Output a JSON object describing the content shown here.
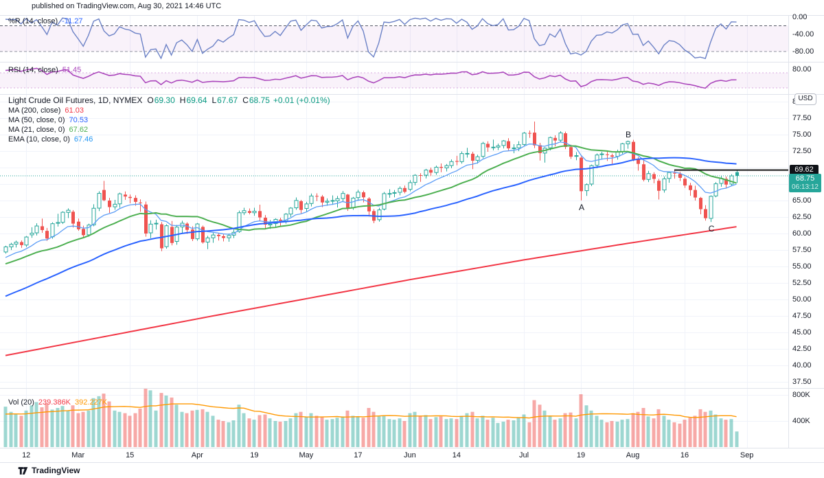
{
  "header": {
    "published_text": "published on TradingView.com, Aug 30, 2021 14:46 UTC"
  },
  "watermark": {
    "brand": "TradingView"
  },
  "colors": {
    "up_candle": "#26a69a",
    "down_candle": "#ef5350",
    "vol_up": "rgba(38,166,154,0.45)",
    "vol_down": "rgba(239,83,80,0.5)",
    "ma200": "#f23645",
    "ma50": "#2962ff",
    "ma21": "#4caf50",
    "ema10": "#5b9cf6",
    "vol_ma": "#ff9800",
    "wpr_line": "#6b81c6",
    "rsi_line": "#ab47bc",
    "band_fill": "rgba(171,71,188,0.07)",
    "band_dash_dark": "#565b66",
    "band_dash_light": "#9094a0",
    "rsi_dash": "rgba(171,71,188,0.45)",
    "grid": "#f0f3fa",
    "pane_border": "#e0e3eb",
    "axis_text": "#131722",
    "last_price": "#26a69a",
    "trendline": "#111111"
  },
  "panes": {
    "wpr": {
      "label": "%R (14, close)",
      "value": "-11.27",
      "ticks": [
        {
          "t": "0.00",
          "v": 0
        },
        {
          "t": "-40.00",
          "v": -40
        },
        {
          "t": "-80.00",
          "v": -80
        }
      ],
      "levels": [
        -20,
        -80
      ]
    },
    "rsi": {
      "label": "RSI (14, close)",
      "value": "51.45",
      "ticks": [
        {
          "t": "80.00",
          "v": 80
        }
      ],
      "levels": [
        70,
        30
      ]
    },
    "main": {
      "title": "Light Crude Oil Futures, 1D, NYMEX",
      "ohlc": {
        "o_label": "O",
        "o": "69.30",
        "h_label": "H",
        "h": "69.64",
        "l_label": "L",
        "l": "67.67",
        "c_label": "C",
        "c": "68.75",
        "change": "+0.01 (+0.01%)"
      },
      "indicators": [
        {
          "label": "MA (200, close)",
          "value": "61.03"
        },
        {
          "label": "MA (50, close, 0)",
          "value": "70.53"
        },
        {
          "label": "MA (21, close, 0)",
          "value": "67.62"
        },
        {
          "label": "EMA (10, close, 0)",
          "value": "67.46"
        }
      ],
      "currency_badge": "USD",
      "ticks": [
        {
          "t": "80.00",
          "v": 80
        },
        {
          "t": "77.50",
          "v": 77.5
        },
        {
          "t": "75.00",
          "v": 75
        },
        {
          "t": "72.50",
          "v": 72.5
        },
        {
          "t": "65.00",
          "v": 65
        },
        {
          "t": "62.50",
          "v": 62.5
        },
        {
          "t": "60.00",
          "v": 60
        },
        {
          "t": "57.50",
          "v": 57.5
        },
        {
          "t": "55.00",
          "v": 55
        },
        {
          "t": "52.50",
          "v": 52.5
        },
        {
          "t": "50.00",
          "v": 50
        },
        {
          "t": "47.50",
          "v": 47.5
        },
        {
          "t": "45.00",
          "v": 45
        },
        {
          "t": "42.50",
          "v": 42.5
        },
        {
          "t": "40.00",
          "v": 40
        },
        {
          "t": "37.50",
          "v": 37.5
        }
      ],
      "price_labels": {
        "trendline": "69.62",
        "last": "68.75",
        "countdown": "06:13:12"
      }
    },
    "volume": {
      "label": "Vol (20)",
      "value_current": "239.386K",
      "value_ma": "392.227K",
      "ticks": [
        {
          "t": "800K",
          "v": 800
        },
        {
          "t": "400K",
          "v": 400
        }
      ]
    }
  },
  "x_axis": {
    "labels": [
      {
        "text": "12",
        "i": 4
      },
      {
        "text": "Mar",
        "i": 14
      },
      {
        "text": "15",
        "i": 24
      },
      {
        "text": "Apr",
        "i": 37
      },
      {
        "text": "19",
        "i": 48
      },
      {
        "text": "May",
        "i": 58
      },
      {
        "text": "17",
        "i": 68
      },
      {
        "text": "Jun",
        "i": 78
      },
      {
        "text": "14",
        "i": 87
      },
      {
        "text": "Jul",
        "i": 100
      },
      {
        "text": "19",
        "i": 111
      },
      {
        "text": "Aug",
        "i": 121
      },
      {
        "text": "16",
        "i": 131
      },
      {
        "text": "Sep",
        "i": 143
      }
    ]
  },
  "chart_data": {
    "type": "candlestick",
    "symbol": "Light Crude Oil Futures",
    "interval": "1D",
    "exchange": "NYMEX",
    "y_axis_range": [
      37.5,
      80
    ],
    "indicator_settings": {
      "wpr_period": 14,
      "rsi_period": 14,
      "sma": [
        200,
        50,
        21
      ],
      "ema": [
        10
      ],
      "vol_ma": 20
    },
    "last_price": 68.75,
    "trendline": {
      "price": 69.62,
      "from_i": 129
    },
    "annotations": [
      {
        "text": "A",
        "i": 111,
        "price": 65.01,
        "pos": "below"
      },
      {
        "text": "B",
        "i": 120,
        "price": 74.1,
        "pos": "above"
      },
      {
        "text": "C",
        "i": 136,
        "price": 61.74,
        "pos": "below"
      }
    ],
    "ma200_points": [
      [
        0,
        41.5
      ],
      [
        20,
        44.5
      ],
      [
        40,
        47.5
      ],
      [
        60,
        50.4
      ],
      [
        78,
        53.0
      ],
      [
        100,
        56.0
      ],
      [
        120,
        58.5
      ],
      [
        141,
        61.03
      ]
    ],
    "pre_close_warmup": [
      41.2,
      41.9,
      42.4,
      42.7,
      43.0,
      42.5,
      43.1,
      43.5,
      43.8,
      44.2,
      44.6,
      45.0,
      45.3,
      45.1,
      45.7,
      46.3,
      47.0,
      46.5,
      45.9,
      46.4,
      47.6,
      49.9,
      50.6,
      50.8,
      52.2,
      52.8,
      52.4,
      53.6,
      53.0,
      53.3,
      52.9,
      53.1,
      52.3,
      52.8,
      53.6,
      54.8,
      55.7,
      56.2,
      56.9,
      57.1,
      56.7,
      56.3,
      55.8,
      55.2,
      54.9,
      55.3,
      55.9,
      56.4,
      56.7,
      56.85
    ],
    "candles": [
      [
        57.2,
        58.15,
        56.95,
        57.97,
        620
      ],
      [
        57.97,
        58.6,
        57.5,
        58.36,
        540
      ],
      [
        58.4,
        58.92,
        57.88,
        58.68,
        505
      ],
      [
        58.7,
        58.95,
        57.82,
        58.24,
        480
      ],
      [
        58.25,
        59.62,
        57.95,
        59.47,
        560
      ],
      [
        59.8,
        60.95,
        59.35,
        60.05,
        640
      ],
      [
        60.1,
        61.55,
        59.7,
        61.14,
        690
      ],
      [
        61.1,
        62.26,
        60.1,
        60.52,
        610
      ],
      [
        60.4,
        60.85,
        58.88,
        59.24,
        670
      ],
      [
        59.5,
        61.7,
        59.2,
        61.49,
        575
      ],
      [
        61.55,
        63.0,
        61.05,
        61.67,
        600
      ],
      [
        61.7,
        63.37,
        61.45,
        63.22,
        630
      ],
      [
        63.2,
        63.81,
        62.35,
        63.53,
        560
      ],
      [
        63.3,
        63.55,
        60.9,
        61.5,
        640
      ],
      [
        61.8,
        62.27,
        60.42,
        60.64,
        520
      ],
      [
        60.7,
        61.18,
        59.4,
        59.75,
        540
      ],
      [
        59.8,
        61.5,
        59.52,
        61.28,
        560
      ],
      [
        61.3,
        64.44,
        61.1,
        63.83,
        750
      ],
      [
        63.85,
        66.4,
        63.4,
        66.09,
        780
      ],
      [
        66.6,
        67.98,
        64.9,
        65.05,
        820
      ],
      [
        65.0,
        65.4,
        63.13,
        64.01,
        700
      ],
      [
        64.05,
        65.1,
        63.6,
        64.44,
        560
      ],
      [
        64.5,
        66.2,
        63.9,
        66.02,
        540
      ],
      [
        65.9,
        66.38,
        65.1,
        65.61,
        520
      ],
      [
        65.55,
        65.91,
        64.6,
        65.39,
        480
      ],
      [
        65.4,
        65.8,
        64.2,
        64.8,
        520
      ],
      [
        64.7,
        65.18,
        63.3,
        64.6,
        590
      ],
      [
        64.4,
        64.85,
        59.52,
        60.0,
        900
      ],
      [
        60.1,
        62.0,
        59.3,
        61.42,
        870
      ],
      [
        61.5,
        62.1,
        60.6,
        61.55,
        560
      ],
      [
        61.4,
        61.75,
        57.32,
        57.76,
        830
      ],
      [
        58.0,
        61.4,
        57.7,
        61.18,
        790
      ],
      [
        61.0,
        61.9,
        58.2,
        58.56,
        760
      ],
      [
        58.8,
        61.3,
        58.3,
        60.97,
        650
      ],
      [
        61.0,
        61.94,
        60.1,
        61.56,
        540
      ],
      [
        61.5,
        61.7,
        59.95,
        60.55,
        520
      ],
      [
        60.6,
        61.1,
        58.85,
        59.16,
        560
      ],
      [
        59.2,
        61.6,
        58.9,
        61.45,
        570
      ],
      [
        61.0,
        61.2,
        58.47,
        58.65,
        580
      ],
      [
        58.7,
        59.65,
        57.63,
        59.33,
        540
      ],
      [
        59.35,
        60.1,
        58.6,
        59.77,
        480
      ],
      [
        59.8,
        60.0,
        58.93,
        59.6,
        420
      ],
      [
        59.6,
        59.9,
        58.8,
        59.32,
        400
      ],
      [
        59.35,
        60.0,
        58.75,
        59.7,
        380
      ],
      [
        59.75,
        60.6,
        59.3,
        60.18,
        410
      ],
      [
        60.3,
        63.48,
        60.1,
        63.15,
        650
      ],
      [
        63.15,
        63.9,
        62.8,
        63.46,
        520
      ],
      [
        63.4,
        63.8,
        62.9,
        63.13,
        440
      ],
      [
        63.15,
        63.9,
        62.7,
        63.38,
        420
      ],
      [
        63.4,
        64.38,
        61.85,
        62.44,
        490
      ],
      [
        62.4,
        62.8,
        60.61,
        61.35,
        500
      ],
      [
        61.3,
        62.06,
        60.7,
        61.43,
        440
      ],
      [
        61.5,
        62.3,
        60.9,
        62.14,
        400
      ],
      [
        62.1,
        62.4,
        61.05,
        61.91,
        390
      ],
      [
        61.9,
        63.1,
        61.5,
        62.94,
        400
      ],
      [
        62.95,
        64.0,
        62.5,
        63.86,
        440
      ],
      [
        63.9,
        65.47,
        63.6,
        65.01,
        520
      ],
      [
        64.9,
        65.1,
        63.07,
        63.58,
        540
      ],
      [
        63.8,
        64.8,
        63.3,
        64.49,
        460
      ],
      [
        64.55,
        66.07,
        64.1,
        65.69,
        520
      ],
      [
        65.7,
        66.1,
        64.92,
        65.63,
        480
      ],
      [
        65.6,
        65.85,
        64.0,
        64.71,
        460
      ],
      [
        64.75,
        65.32,
        64.2,
        64.9,
        420
      ],
      [
        65.0,
        65.78,
        64.35,
        64.92,
        430
      ],
      [
        64.95,
        65.7,
        63.94,
        65.28,
        450
      ],
      [
        65.3,
        66.44,
        64.9,
        66.08,
        470
      ],
      [
        65.9,
        66.0,
        63.42,
        63.82,
        560
      ],
      [
        63.9,
        65.55,
        63.6,
        65.37,
        480
      ],
      [
        65.45,
        66.63,
        64.95,
        66.27,
        470
      ],
      [
        66.25,
        66.5,
        64.73,
        65.49,
        450
      ],
      [
        65.3,
        65.52,
        62.58,
        63.36,
        600
      ],
      [
        63.4,
        63.7,
        61.56,
        61.94,
        540
      ],
      [
        62.1,
        63.9,
        61.8,
        63.58,
        470
      ],
      [
        63.7,
        66.3,
        63.5,
        66.05,
        480
      ],
      [
        66.05,
        66.72,
        65.42,
        66.07,
        430
      ],
      [
        66.1,
        66.6,
        65.5,
        66.21,
        420
      ],
      [
        66.25,
        67.15,
        65.8,
        66.85,
        440
      ],
      [
        66.9,
        67.28,
        66.1,
        66.32,
        400
      ],
      [
        66.7,
        68.1,
        66.4,
        67.72,
        520
      ],
      [
        67.75,
        69.0,
        67.3,
        68.83,
        540
      ],
      [
        68.85,
        69.15,
        67.84,
        68.81,
        480
      ],
      [
        68.85,
        69.8,
        68.35,
        69.62,
        490
      ],
      [
        69.65,
        70.0,
        68.72,
        69.23,
        430
      ],
      [
        69.25,
        70.3,
        68.9,
        70.05,
        460
      ],
      [
        70.1,
        70.62,
        69.3,
        69.96,
        470
      ],
      [
        69.95,
        70.55,
        69.42,
        70.29,
        430
      ],
      [
        70.3,
        71.24,
        69.9,
        70.91,
        440
      ],
      [
        71.0,
        71.78,
        70.35,
        70.88,
        430
      ],
      [
        70.9,
        72.45,
        70.6,
        72.12,
        480
      ],
      [
        72.15,
        72.99,
        71.51,
        72.15,
        520
      ],
      [
        72.1,
        72.4,
        69.77,
        71.04,
        540
      ],
      [
        71.1,
        71.95,
        70.6,
        71.64,
        440
      ],
      [
        71.7,
        73.9,
        71.4,
        73.66,
        480
      ],
      [
        73.6,
        73.98,
        72.4,
        73.06,
        420
      ],
      [
        73.1,
        74.25,
        72.6,
        73.08,
        450
      ],
      [
        73.1,
        73.63,
        72.65,
        73.3,
        370
      ],
      [
        73.35,
        74.18,
        72.9,
        74.05,
        390
      ],
      [
        74.0,
        74.45,
        72.62,
        72.91,
        420
      ],
      [
        72.95,
        73.54,
        72.18,
        72.98,
        410
      ],
      [
        73.0,
        74.0,
        72.5,
        73.47,
        460
      ],
      [
        73.5,
        75.4,
        73.2,
        75.23,
        500
      ],
      [
        75.25,
        75.62,
        74.5,
        75.16,
        380
      ],
      [
        75.3,
        76.98,
        72.95,
        73.37,
        720
      ],
      [
        73.4,
        73.75,
        71.07,
        72.2,
        650
      ],
      [
        72.2,
        73.1,
        70.76,
        72.94,
        560
      ],
      [
        73.0,
        74.7,
        72.6,
        74.56,
        470
      ],
      [
        74.5,
        74.9,
        73.21,
        74.1,
        420
      ],
      [
        74.15,
        75.52,
        73.8,
        75.25,
        440
      ],
      [
        75.2,
        75.45,
        72.8,
        73.13,
        520
      ],
      [
        73.1,
        73.48,
        71.31,
        71.65,
        530
      ],
      [
        71.7,
        72.35,
        71.12,
        71.81,
        440
      ],
      [
        71.5,
        71.7,
        65.01,
        66.42,
        810
      ],
      [
        66.5,
        67.6,
        65.7,
        67.42,
        640
      ],
      [
        67.5,
        70.45,
        67.2,
        70.3,
        560
      ],
      [
        70.35,
        72.15,
        69.9,
        71.91,
        480
      ],
      [
        72.0,
        72.4,
        71.2,
        72.07,
        420
      ],
      [
        72.0,
        72.45,
        71.0,
        71.91,
        380
      ],
      [
        71.85,
        72.12,
        70.58,
        71.65,
        400
      ],
      [
        71.7,
        72.72,
        71.2,
        72.39,
        390
      ],
      [
        72.4,
        73.75,
        72.1,
        73.62,
        420
      ],
      [
        73.6,
        74.1,
        72.85,
        73.95,
        430
      ],
      [
        73.9,
        74.2,
        70.98,
        71.26,
        520
      ],
      [
        71.3,
        71.6,
        69.53,
        70.56,
        540
      ],
      [
        70.5,
        71.1,
        67.9,
        68.15,
        600
      ],
      [
        68.2,
        69.5,
        67.8,
        69.09,
        470
      ],
      [
        69.0,
        69.3,
        67.62,
        68.28,
        440
      ],
      [
        68.0,
        68.3,
        65.16,
        66.48,
        580
      ],
      [
        66.6,
        68.65,
        66.2,
        68.29,
        480
      ],
      [
        68.35,
        69.38,
        67.7,
        69.25,
        420
      ],
      [
        69.2,
        69.6,
        68.32,
        69.09,
        380
      ],
      [
        69.05,
        69.35,
        67.95,
        68.44,
        360
      ],
      [
        68.3,
        68.55,
        66.92,
        67.29,
        420
      ],
      [
        67.3,
        67.7,
        65.71,
        66.59,
        450
      ],
      [
        66.6,
        67.25,
        65.0,
        65.46,
        480
      ],
      [
        65.4,
        65.55,
        62.92,
        63.69,
        580
      ],
      [
        63.7,
        64.3,
        61.95,
        62.32,
        540
      ],
      [
        62.3,
        65.8,
        61.74,
        65.64,
        560
      ],
      [
        65.7,
        67.8,
        65.5,
        67.54,
        500
      ],
      [
        67.6,
        68.7,
        67.1,
        68.36,
        440
      ],
      [
        68.3,
        68.65,
        66.92,
        67.42,
        420
      ],
      [
        67.5,
        69.0,
        67.2,
        68.74,
        430
      ],
      [
        69.3,
        69.64,
        67.67,
        68.75,
        239.386
      ]
    ]
  }
}
